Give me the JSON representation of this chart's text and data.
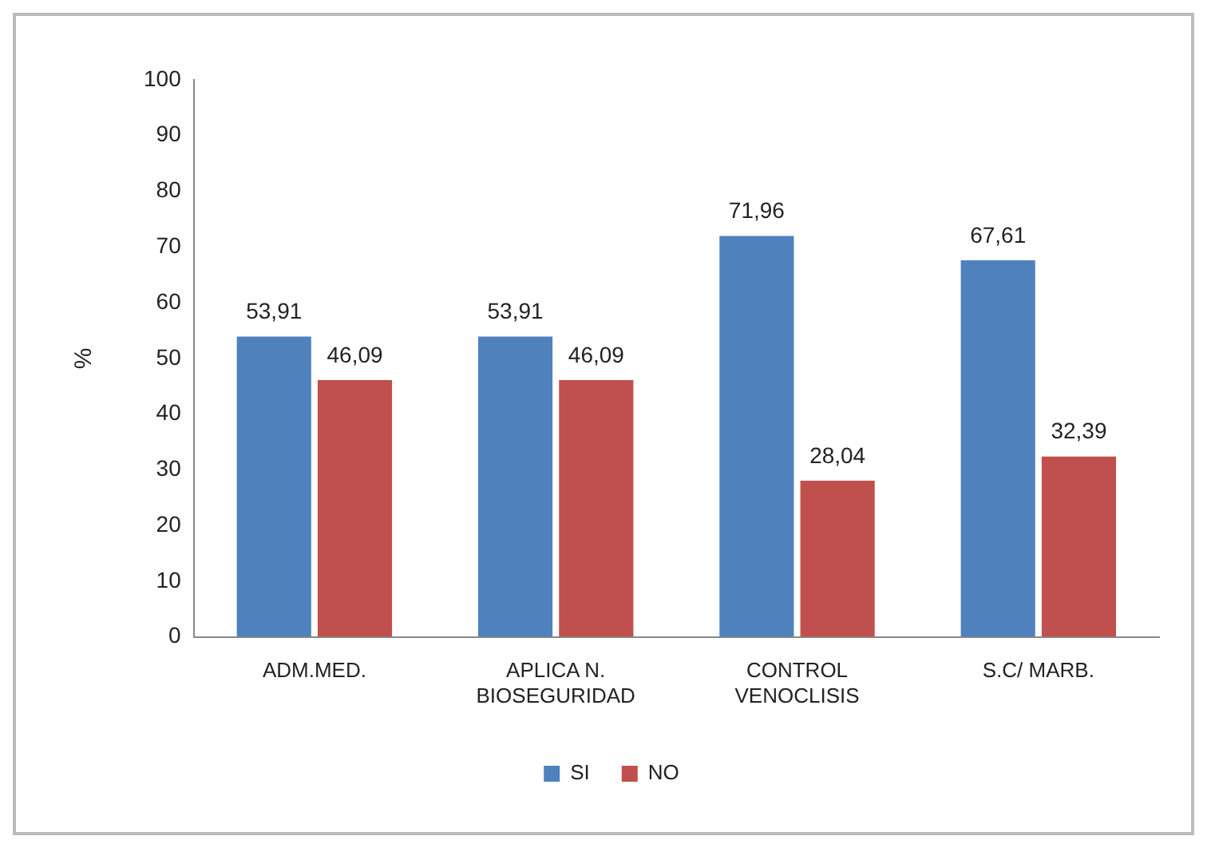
{
  "chart_data": {
    "type": "bar",
    "ylabel": "%",
    "categories": [
      "ADM.MED.",
      "APLICA N.\nBIOSEGURIDAD",
      "CONTROL\nVENOCLISIS",
      "S.C/ MARB."
    ],
    "series": [
      {
        "name": "SI",
        "color": "#4f81bd",
        "values": [
          53.91,
          53.91,
          71.96,
          67.61
        ],
        "value_labels": [
          "53,91",
          "53,91",
          "71,96",
          "67,61"
        ]
      },
      {
        "name": "NO",
        "color": "#c0504d",
        "values": [
          46.09,
          46.09,
          28.04,
          32.39
        ],
        "value_labels": [
          "46,09",
          "46,09",
          "28,04",
          "32,39"
        ]
      }
    ],
    "ylim": [
      0,
      100
    ],
    "yticks": [
      0,
      10,
      20,
      30,
      40,
      50,
      60,
      70,
      80,
      90,
      100
    ],
    "grid": false,
    "legend": "bottom"
  }
}
